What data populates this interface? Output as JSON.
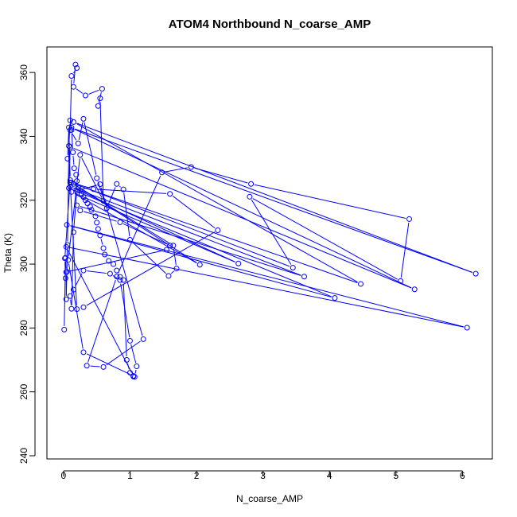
{
  "chart_data": {
    "type": "line",
    "title": "ATOM4 Northbound N_coarse_AMP",
    "xlabel": "N_coarse_AMP",
    "ylabel": "Theta (K)",
    "xlim": [
      -0.25,
      6.45
    ],
    "ylim": [
      239,
      368
    ],
    "x_ticks": [
      0,
      1,
      2,
      3,
      4,
      5,
      6
    ],
    "y_ticks": [
      240,
      260,
      280,
      300,
      320,
      340,
      360
    ],
    "grid": false,
    "legend": "none",
    "color": "#0000ff",
    "marker": "open-circle",
    "series": [
      {
        "x": [
          0.01,
          0.03,
          0.04,
          0.04,
          0.06,
          0.08,
          0.1,
          0.12,
          0.14,
          0.16,
          0.19,
          0.2,
          0.22,
          0.25,
          0.27,
          0.3,
          0.33,
          0.36,
          0.4,
          0.42,
          0.48,
          0.5,
          0.52,
          0.55,
          0.6,
          0.62,
          0.68,
          0.75,
          0.8,
          0.85,
          0.9,
          0.95,
          1.0,
          1.05,
          1.07,
          1.1,
          1.0,
          0.85,
          0.7,
          0.3,
          0.15,
          0.1,
          0.12,
          0.15,
          0.2,
          0.55,
          1.2,
          0.6,
          0.35,
          0.8,
          1.48,
          1.92,
          2.82,
          5.2,
          5.07,
          2.8,
          3.45,
          0.12,
          0.45,
          1.6,
          2.32,
          0.3,
          0.2,
          0.1,
          4.47,
          0.15,
          6.2,
          0.12,
          5.28,
          0.1,
          0.08,
          4.08,
          0.05,
          6.07,
          0.04,
          1.05,
          0.3,
          0.07,
          0.25,
          0.6,
          0.55,
          0.52,
          0.58,
          0.33,
          0.15,
          0.18,
          0.2,
          0.12,
          0.1,
          0.22,
          0.3,
          0.5,
          0.65,
          0.8,
          0.9,
          1.0,
          1.58,
          1.7,
          1.65,
          0.15,
          2.05,
          0.12,
          2.63,
          0.1,
          3.62,
          0.2,
          0.25,
          0.85,
          1.6,
          1.55,
          0.05,
          0.03,
          0.02,
          0.1,
          0.08,
          0.06
        ],
        "y": [
          279.5,
          302,
          297.5,
          289,
          306,
          337,
          345,
          342,
          335,
          330,
          328,
          326,
          324,
          323,
          322,
          321,
          320,
          319,
          318,
          317,
          315,
          313,
          311,
          309,
          305,
          303,
          301,
          300,
          298,
          296,
          295,
          270,
          266,
          264.8,
          264.7,
          268,
          276,
          295,
          297,
          298,
          292,
          290,
          286,
          310,
          323,
          325,
          276.5,
          267.8,
          268.2,
          296.1,
          328.7,
          330.4,
          325.1,
          314.1,
          294.7,
          321.1,
          298.9,
          325.5,
          323.5,
          322,
          310.6,
          286.5,
          285.9,
          325.5,
          293.8,
          344.5,
          297,
          342.7,
          292.1,
          336.7,
          323.8,
          289.4,
          312.3,
          280.1,
          305.4,
          265,
          272.4,
          301.3,
          334.2,
          319.8,
          351.9,
          349.5,
          354.9,
          352.8,
          355.5,
          362.5,
          361.4,
          358.9,
          341.9,
          337.8,
          345.5,
          326.9,
          317.5,
          325.1,
          323.4,
          307.6,
          296.3,
          298.6,
          305.8,
          325.1,
          299.8,
          322.6,
          300.2,
          324.3,
          296.1,
          318.4,
          316.8,
          313.1,
          305.8,
          304.5,
          297.6,
          295.6,
          301.8,
          326.3,
          342.8,
          333
        ]
      }
    ]
  }
}
